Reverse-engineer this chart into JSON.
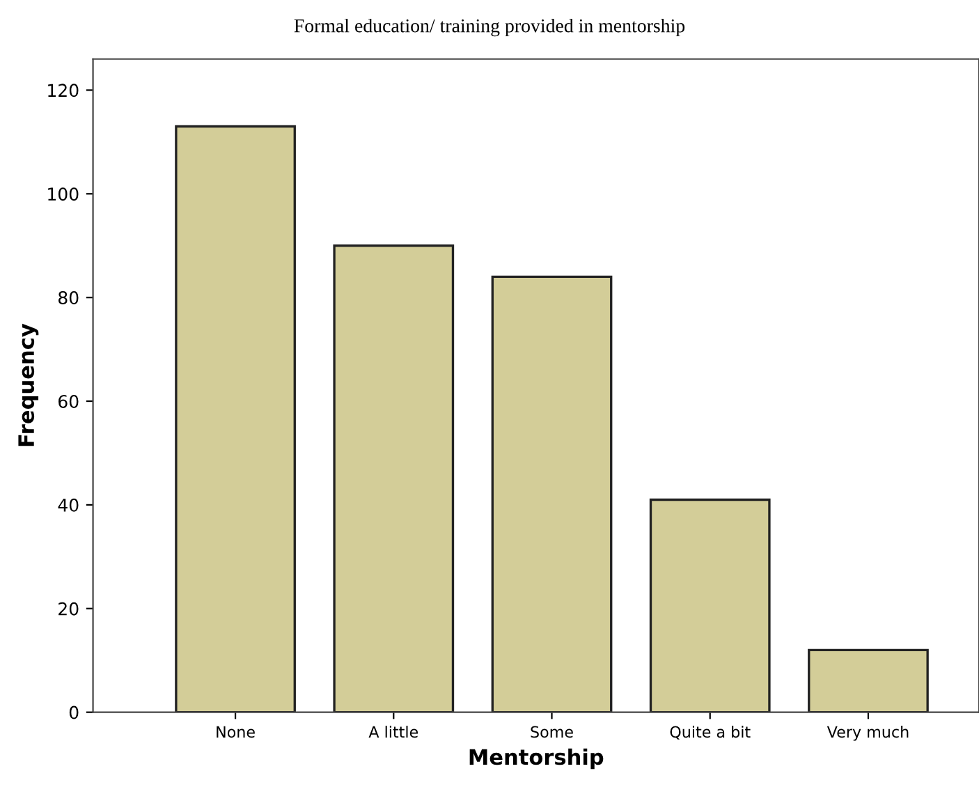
{
  "chart_data": {
    "type": "bar",
    "title": "Formal education/ training provided in mentorship",
    "xlabel": "Mentorship",
    "ylabel": "Frequency",
    "categories": [
      "None",
      "A little",
      "Some",
      "Quite a bit",
      "Very much"
    ],
    "values": [
      113,
      90,
      84,
      41,
      12
    ],
    "color": "#d3cd98",
    "ylim": [
      0,
      126
    ],
    "yticks": [
      0,
      20,
      40,
      60,
      80,
      100,
      120
    ],
    "grid": false,
    "legend": false
  }
}
